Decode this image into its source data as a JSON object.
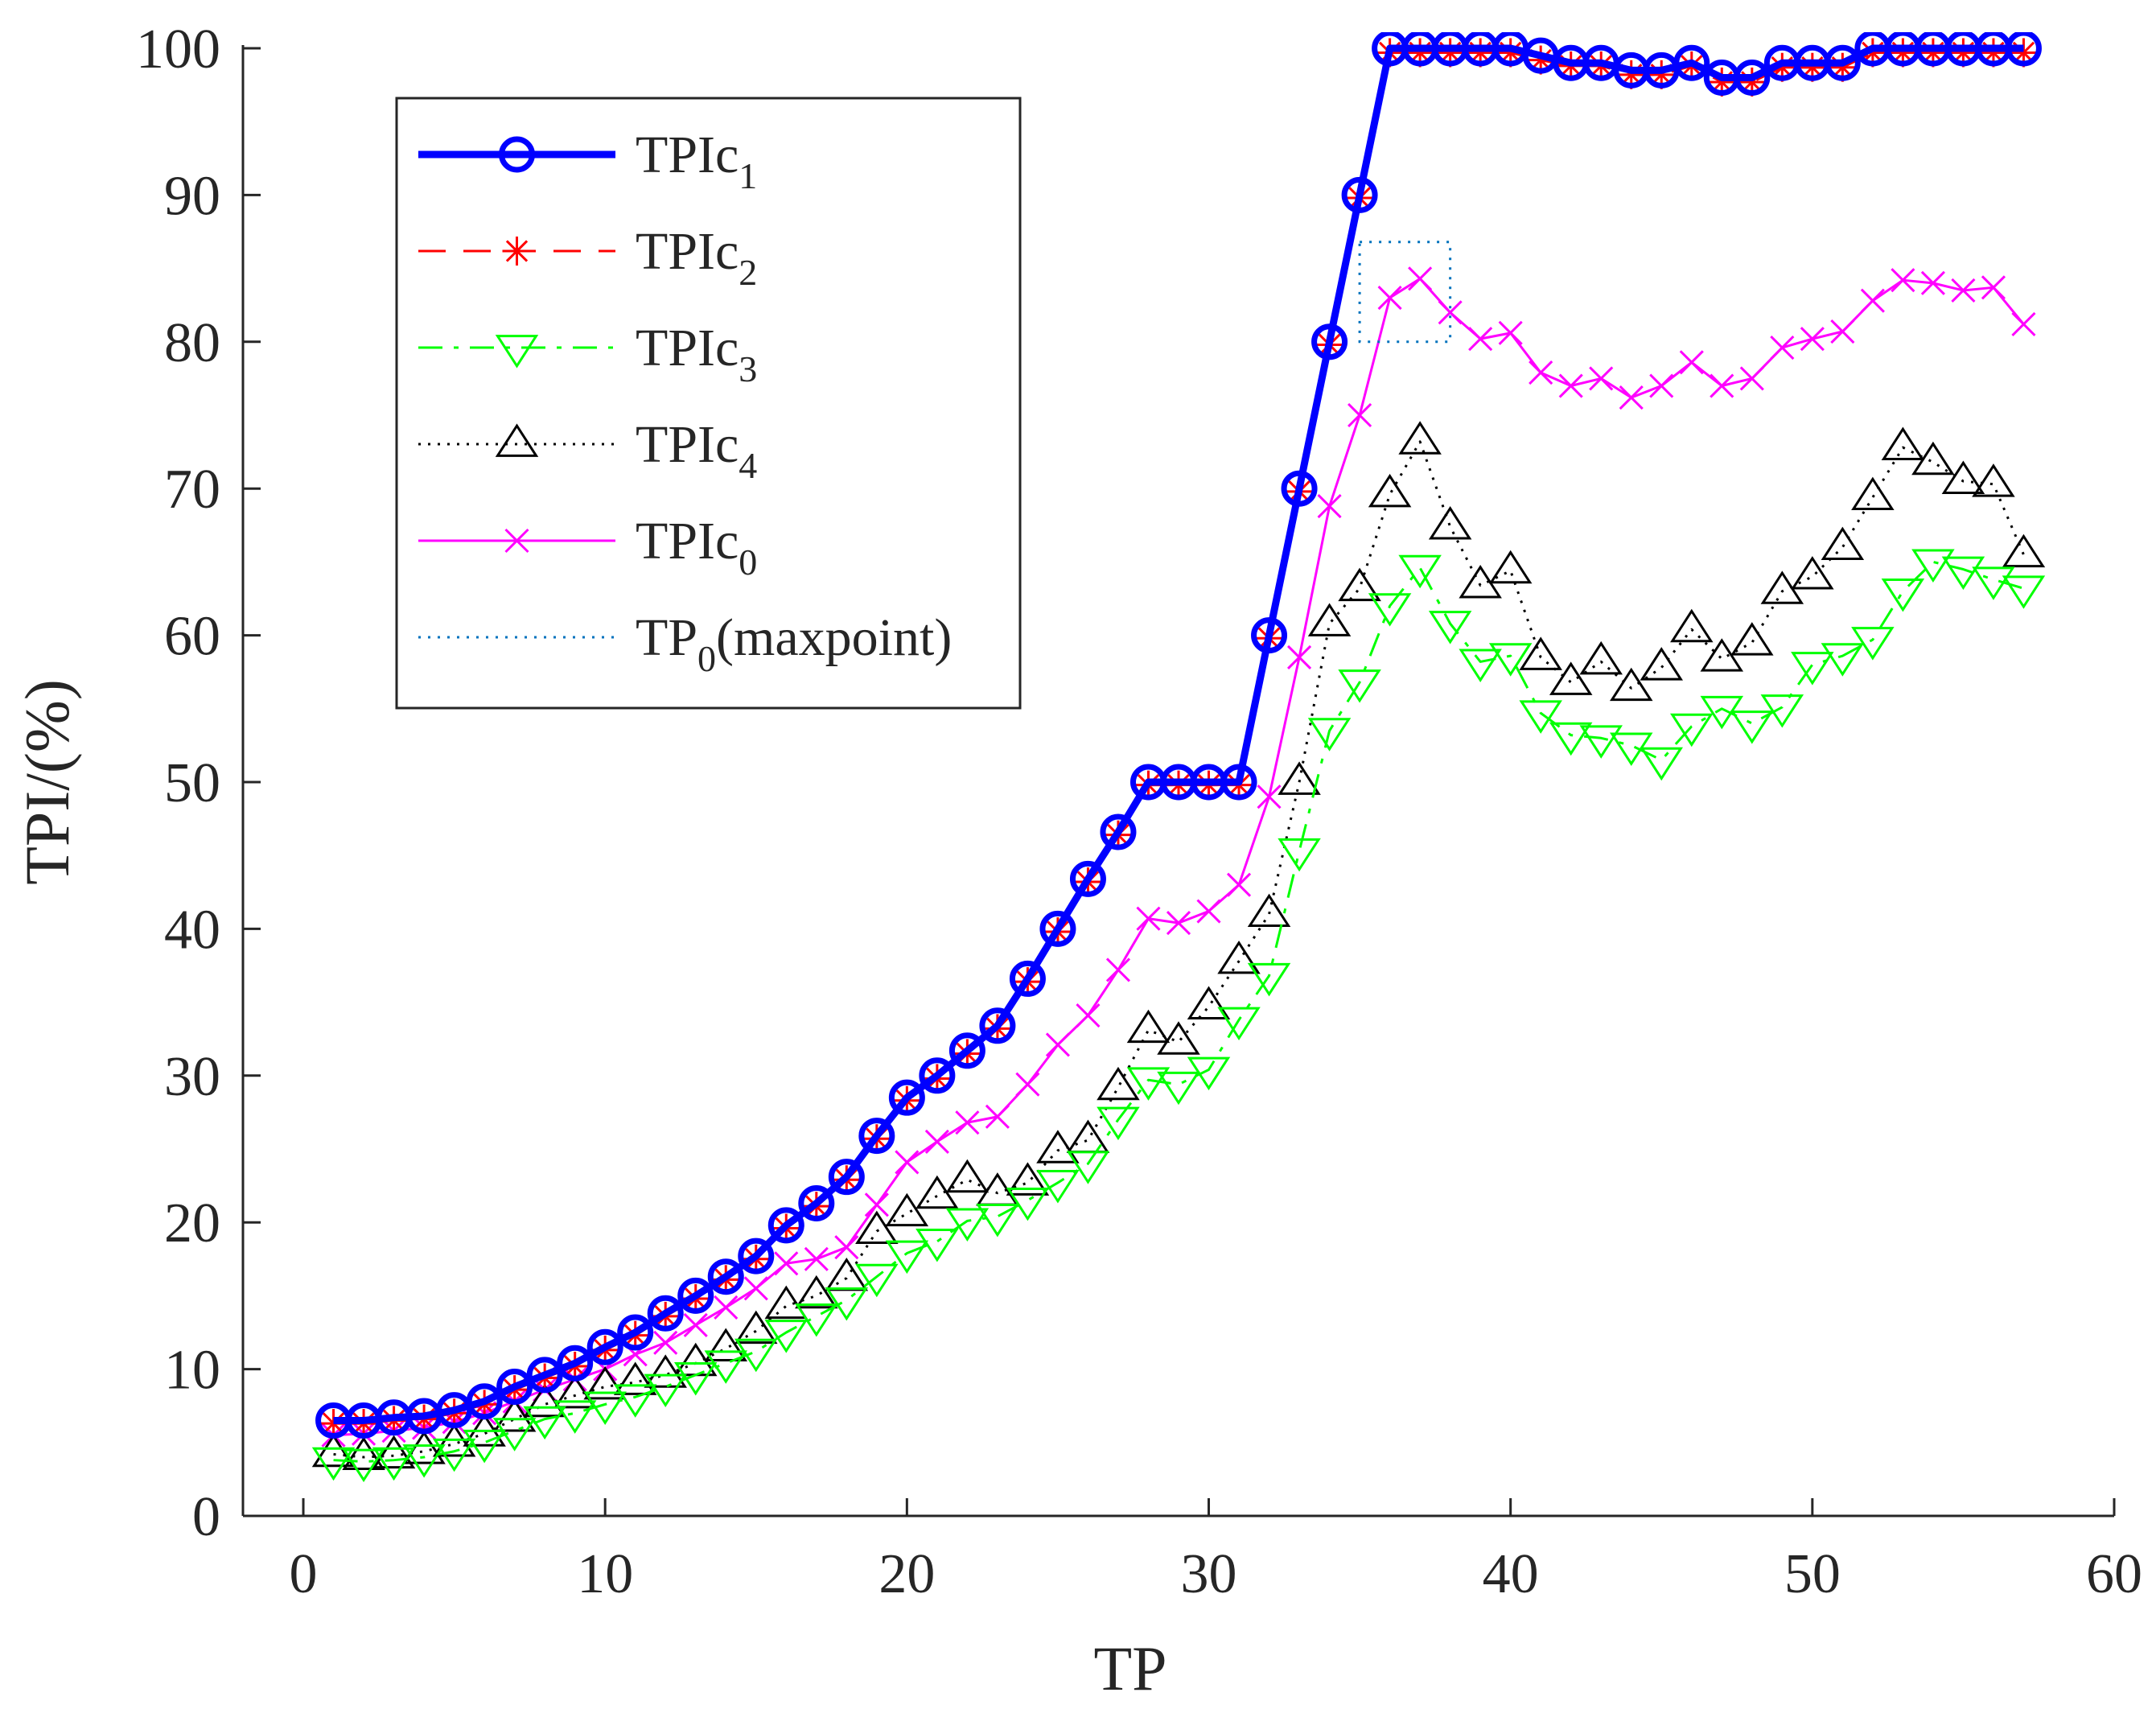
{
  "chart_data": {
    "type": "line",
    "title": "",
    "xlabel": "TP",
    "ylabel": "TPI/(%)",
    "xlim": [
      -2,
      60
    ],
    "ylim": [
      0,
      100
    ],
    "xticks": [
      "0",
      "10",
      "20",
      "30",
      "40",
      "50",
      "60"
    ],
    "yticks": [
      "0",
      "10",
      "20",
      "30",
      "40",
      "50",
      "60",
      "70",
      "80",
      "90",
      "100"
    ],
    "legend_position": "top-left",
    "x": [
      1,
      2,
      3,
      4,
      5,
      6,
      7,
      8,
      9,
      10,
      11,
      12,
      13,
      14,
      15,
      16,
      17,
      18,
      19,
      20,
      21,
      22,
      23,
      24,
      25,
      26,
      27,
      28,
      29,
      30,
      31,
      32,
      33,
      34,
      35,
      36,
      37,
      38,
      39,
      40,
      41,
      42,
      43,
      44,
      45,
      46,
      47,
      48,
      49,
      50,
      51,
      52,
      53,
      54,
      55,
      56,
      57
    ],
    "series": [
      {
        "name": "TPIc",
        "sub": "1",
        "color": "#0000ff",
        "style": "solid",
        "marker": "circle",
        "values": [
          6.5,
          6.5,
          6.7,
          6.8,
          7.2,
          7.8,
          8.8,
          9.6,
          10.4,
          11.5,
          12.5,
          13.8,
          15,
          16.3,
          17.7,
          19.8,
          21.3,
          23.1,
          25.9,
          28.5,
          30,
          31.7,
          33.4,
          36.6,
          40,
          43.4,
          46.6,
          50,
          50,
          50,
          50,
          60,
          70,
          80,
          90,
          100,
          100,
          100,
          100,
          100,
          99.5,
          99,
          99,
          98.5,
          98.5,
          99,
          98,
          98,
          99,
          99,
          99,
          100,
          100,
          100,
          100,
          100,
          100
        ]
      },
      {
        "name": "TPIc",
        "sub": "2",
        "color": "#ff0000",
        "style": "dashed",
        "marker": "star",
        "values": [
          6.3,
          6.3,
          6.5,
          6.6,
          7,
          7.6,
          8.6,
          9.4,
          10.2,
          11.3,
          12.3,
          13.6,
          14.8,
          16.1,
          17.5,
          19.6,
          21.1,
          22.9,
          25.7,
          28.3,
          29.8,
          31.5,
          33.2,
          36.4,
          39.8,
          43.2,
          46.4,
          49.8,
          49.8,
          49.8,
          49.8,
          59.8,
          69.8,
          79.8,
          89.8,
          99.7,
          99.7,
          99.7,
          99.7,
          99.7,
          99.2,
          98.8,
          98.8,
          98.2,
          98.2,
          98.8,
          97.7,
          97.7,
          98.7,
          98.7,
          98.7,
          99.7,
          99.7,
          99.7,
          99.7,
          99.7,
          99.7
        ]
      },
      {
        "name": "TPIc",
        "sub": "3",
        "color": "#00ff00",
        "style": "dashdot",
        "marker": "triangle-down",
        "values": [
          3.8,
          3.7,
          3.8,
          4,
          4.4,
          5,
          5.8,
          6.6,
          7,
          7.6,
          8.1,
          8.8,
          9.6,
          10.4,
          11.2,
          12.5,
          13.6,
          14.7,
          16.3,
          17.9,
          18.7,
          20.1,
          20.4,
          21.5,
          22.7,
          24,
          27,
          29.7,
          29.4,
          30.4,
          33.8,
          36.8,
          45.3,
          53.5,
          56.8,
          62,
          64.6,
          60.8,
          58.2,
          58.6,
          54.7,
          53.2,
          53,
          52.5,
          51.5,
          53.8,
          55,
          54,
          55.1,
          58,
          58.6,
          59.7,
          63,
          65,
          64.5,
          63.8,
          63.2
        ]
      },
      {
        "name": "TPIc",
        "sub": "4",
        "color": "#000000",
        "style": "dotted",
        "marker": "triangle-up",
        "values": [
          4.2,
          4,
          4.1,
          4.4,
          4.9,
          5.6,
          6.6,
          7.6,
          8.2,
          8.8,
          9.1,
          9.6,
          10.4,
          11.4,
          12.6,
          14.3,
          15,
          16.2,
          19.4,
          20.6,
          21.8,
          22.9,
          22,
          22.7,
          24.9,
          25.6,
          29.2,
          33.1,
          32.3,
          34.7,
          37.8,
          41,
          50,
          60.8,
          63.2,
          69.6,
          73.2,
          67.4,
          63.4,
          64.4,
          58.5,
          56.8,
          58.2,
          56.4,
          57.8,
          60.4,
          58.4,
          59.5,
          63,
          64,
          66,
          69.4,
          72.8,
          71.8,
          70.5,
          70.3,
          65.5
        ]
      },
      {
        "name": "TPIc",
        "sub": "0",
        "color": "#ff00ff",
        "style": "solid-thin",
        "marker": "x",
        "values": [
          5.5,
          5.6,
          5.8,
          6,
          6.4,
          7,
          7.8,
          8.6,
          9.3,
          10,
          11,
          11.8,
          13,
          14.2,
          15.5,
          17.2,
          17.5,
          18.3,
          21.2,
          24.1,
          25.5,
          26.8,
          27.2,
          29.4,
          32.1,
          34.1,
          37.2,
          40.7,
          40.4,
          41.2,
          43,
          49,
          58.5,
          68.8,
          75,
          83,
          84.3,
          82,
          80.2,
          80.6,
          77.9,
          77,
          77.5,
          76.2,
          77,
          78.6,
          77,
          77.5,
          79.6,
          80.2,
          80.7,
          82.8,
          84.2,
          84,
          83.5,
          83.7,
          81.2
        ]
      }
    ],
    "annotation_box": {
      "name": "TP",
      "sub": "0",
      "suffix": "(maxpoint)",
      "color": "#0072bd",
      "style": "dotted",
      "x_range": [
        35,
        38
      ],
      "y_range": [
        80,
        86.8
      ]
    }
  }
}
